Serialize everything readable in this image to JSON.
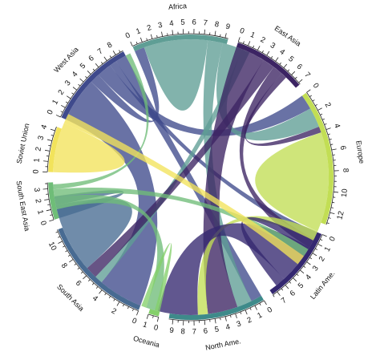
{
  "chart_data": {
    "type": "chord",
    "regions": [
      {
        "name": "Africa",
        "total": 9.3,
        "color": "#5f9e95"
      },
      {
        "name": "East Asia",
        "total": 7.2,
        "color": "#3c2463"
      },
      {
        "name": "Europe",
        "total": 13.2,
        "color": "#c2de54"
      },
      {
        "name": "Latin Ame.",
        "total": 7.5,
        "color": "#342870"
      },
      {
        "name": "North Ame.",
        "total": 9.4,
        "color": "#3e8a8a"
      },
      {
        "name": "Oceania",
        "total": 1.0,
        "color": "#84d06a"
      },
      {
        "name": "South Asia",
        "total": 11.2,
        "color": "#486b92"
      },
      {
        "name": "South East Asia",
        "total": 3.6,
        "color": "#6fbd78"
      },
      {
        "name": "Soviet Union",
        "total": 4.4,
        "color": "#f2e35b"
      },
      {
        "name": "West Asia",
        "total": 8.8,
        "color": "#3f4a8c"
      }
    ],
    "flows": [
      {
        "from": "West Asia",
        "to": "South Asia",
        "value": 4.5
      },
      {
        "from": "West Asia",
        "to": "Africa",
        "value": 1.0
      },
      {
        "from": "West Asia",
        "to": "Europe",
        "value": 1.5
      },
      {
        "from": "West Asia",
        "to": "Latin Ame.",
        "value": 0.7
      },
      {
        "from": "West Asia",
        "to": "North Ame.",
        "value": 1.1
      },
      {
        "from": "Africa",
        "to": "Africa",
        "value": 3.2
      },
      {
        "from": "Africa",
        "to": "North Ame.",
        "value": 1.5
      },
      {
        "from": "Africa",
        "to": "Europe",
        "value": 2.0
      },
      {
        "from": "Africa",
        "to": "South Asia",
        "value": 0.8
      },
      {
        "from": "East Asia",
        "to": "North Ame.",
        "value": 3.0
      },
      {
        "from": "East Asia",
        "to": "South Asia",
        "value": 1.2
      },
      {
        "from": "East Asia",
        "to": "Latin Ame.",
        "value": 1.0
      },
      {
        "from": "East Asia",
        "to": "Europe",
        "value": 0.6
      },
      {
        "from": "Europe",
        "to": "Europe",
        "value": 5.0
      },
      {
        "from": "Europe",
        "to": "North Ame.",
        "value": 1.0
      },
      {
        "from": "Latin Ame.",
        "to": "North Ame.",
        "value": 4.0
      },
      {
        "from": "Latin Ame.",
        "to": "Europe",
        "value": 1.0
      },
      {
        "from": "South Asia",
        "to": "South Asia",
        "value": 3.5
      },
      {
        "from": "South Asia",
        "to": "South East Asia",
        "value": 0.9
      },
      {
        "from": "South East Asia",
        "to": "North Ame.",
        "value": 1.2
      },
      {
        "from": "South East Asia",
        "to": "Europe",
        "value": 0.8
      },
      {
        "from": "South East Asia",
        "to": "West Asia",
        "value": 0.5
      },
      {
        "from": "Soviet Union",
        "to": "Soviet Union",
        "value": 2.5
      },
      {
        "from": "Soviet Union",
        "to": "Europe",
        "value": 1.0
      },
      {
        "from": "Oceania",
        "to": "North Ame.",
        "value": 0.5
      }
    ]
  }
}
